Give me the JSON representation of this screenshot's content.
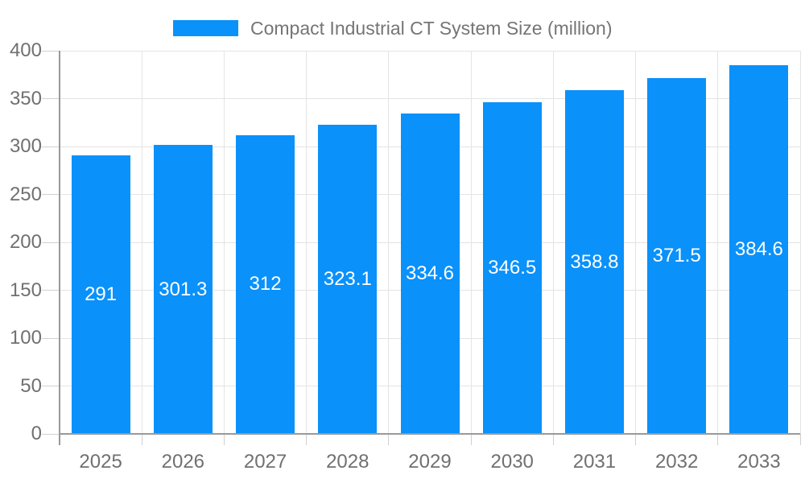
{
  "chart_data": {
    "type": "bar",
    "title": "Compact Industrial CT System Size (million)",
    "categories": [
      "2025",
      "2026",
      "2027",
      "2028",
      "2029",
      "2030",
      "2031",
      "2032",
      "2033"
    ],
    "values": [
      291,
      301.3,
      312,
      323.1,
      334.6,
      346.5,
      358.8,
      371.5,
      384.6
    ],
    "value_labels": [
      "291",
      "301.3",
      "312",
      "323.1",
      "334.6",
      "346.5",
      "358.8",
      "371.5",
      "384.6"
    ],
    "xlabel": "",
    "ylabel": "",
    "ylim": [
      0,
      400
    ],
    "ytick_step": 50,
    "ytick_labels": [
      "0",
      "50",
      "100",
      "150",
      "200",
      "250",
      "300",
      "350",
      "400"
    ],
    "grid": true,
    "legend_position": "top-center",
    "colors": {
      "bar": "#0A91FA",
      "value_label": "#FFFFFF",
      "axis_text": "#707070",
      "legend_text": "#757575",
      "gridline": "#E4E4E4",
      "tick": "#D0D0D0",
      "axis_line": "#999999",
      "background": "#FFFFFF"
    }
  }
}
